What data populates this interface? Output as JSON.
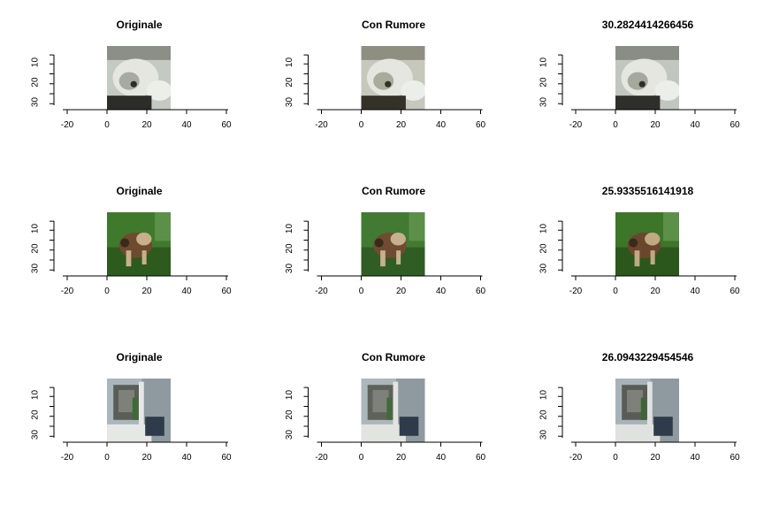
{
  "figure": {
    "type": "image-grid",
    "rows": 3,
    "columns": 3
  },
  "chart_data": [
    {
      "type": "image",
      "title": "Originale",
      "xlim": [
        -20,
        60
      ],
      "xticks": [
        -20,
        0,
        20,
        40,
        60
      ],
      "ylim": [
        32,
        0
      ],
      "yticks": [
        10,
        20,
        30
      ],
      "image_extent": {
        "x": [
          0,
          32
        ],
        "y": [
          0,
          32
        ]
      },
      "image_colors": [
        "#c4c9c2",
        "#a6ab9f",
        "#2c2c28",
        "#8b8f85"
      ],
      "subject": "dog"
    },
    {
      "type": "image",
      "title": "Con Rumore",
      "xlim": [
        -20,
        60
      ],
      "xticks": [
        -20,
        0,
        20,
        40,
        60
      ],
      "ylim": [
        32,
        0
      ],
      "yticks": [
        10,
        20,
        30
      ],
      "image_extent": {
        "x": [
          0,
          32
        ],
        "y": [
          0,
          32
        ]
      },
      "image_colors": [
        "#c6c8bd",
        "#a9ab9b",
        "#343129",
        "#8e8f80"
      ],
      "subject": "dog"
    },
    {
      "type": "image",
      "title": "30.2824414266456",
      "xlim": [
        -20,
        60
      ],
      "xticks": [
        -20,
        0,
        20,
        40,
        60
      ],
      "ylim": [
        32,
        0
      ],
      "yticks": [
        10,
        20,
        30
      ],
      "image_extent": {
        "x": [
          0,
          32
        ],
        "y": [
          0,
          32
        ]
      },
      "image_colors": [
        "#c3c6bf",
        "#a5a89d",
        "#2e2e2a",
        "#8a8d83"
      ],
      "subject": "dog"
    },
    {
      "type": "image",
      "title": "Originale",
      "xlim": [
        -20,
        60
      ],
      "xticks": [
        -20,
        0,
        20,
        40,
        60
      ],
      "ylim": [
        32,
        0
      ],
      "yticks": [
        10,
        20,
        30
      ],
      "image_colors": [
        "#3f7a2c",
        "#2d5a1d",
        "#6e4a2e",
        "#c9b08a"
      ],
      "image_extent": {
        "x": [
          0,
          32
        ],
        "y": [
          0,
          32
        ]
      },
      "subject": "animal-on-grass"
    },
    {
      "type": "image",
      "title": "Con Rumore",
      "xlim": [
        -20,
        60
      ],
      "xticks": [
        -20,
        0,
        20,
        40,
        60
      ],
      "ylim": [
        32,
        0
      ],
      "yticks": [
        10,
        20,
        30
      ],
      "image_extent": {
        "x": [
          0,
          32
        ],
        "y": [
          0,
          32
        ]
      },
      "image_colors": [
        "#437a33",
        "#305d24",
        "#6f4c31",
        "#c7b08d"
      ],
      "subject": "animal-on-grass"
    },
    {
      "type": "image",
      "title": "25.9335516141918",
      "xlim": [
        -20,
        60
      ],
      "xticks": [
        -20,
        0,
        20,
        40,
        60
      ],
      "ylim": [
        32,
        0
      ],
      "yticks": [
        10,
        20,
        30
      ],
      "image_extent": {
        "x": [
          0,
          32
        ],
        "y": [
          0,
          32
        ]
      },
      "image_colors": [
        "#3d7529",
        "#2b561c",
        "#6a472c",
        "#c2a983"
      ],
      "subject": "animal-on-grass"
    },
    {
      "type": "image",
      "title": "Originale",
      "xlim": [
        -20,
        60
      ],
      "xticks": [
        -20,
        0,
        20,
        40,
        60
      ],
      "ylim": [
        32,
        0
      ],
      "yticks": [
        10,
        20,
        30
      ],
      "image_extent": {
        "x": [
          0,
          32
        ],
        "y": [
          0,
          32
        ]
      },
      "image_colors": [
        "#a9b6bd",
        "#5a5e58",
        "#e6e8e6",
        "#3e6a35"
      ],
      "subject": "machine"
    },
    {
      "type": "image",
      "title": "Con Rumore",
      "xlim": [
        -20,
        60
      ],
      "xticks": [
        -20,
        0,
        20,
        40,
        60
      ],
      "ylim": [
        32,
        0
      ],
      "yticks": [
        10,
        20,
        30
      ],
      "image_extent": {
        "x": [
          0,
          32
        ],
        "y": [
          0,
          32
        ]
      },
      "image_colors": [
        "#abb7bb",
        "#5f625b",
        "#e2e4e0",
        "#43693a"
      ],
      "subject": "machine"
    },
    {
      "type": "image",
      "title": "26.0943229454546",
      "xlim": [
        -20,
        60
      ],
      "xticks": [
        -20,
        0,
        20,
        40,
        60
      ],
      "ylim": [
        32,
        0
      ],
      "yticks": [
        10,
        20,
        30
      ],
      "image_extent": {
        "x": [
          0,
          32
        ],
        "y": [
          0,
          32
        ]
      },
      "image_colors": [
        "#a7b3b9",
        "#595c56",
        "#e0e2df",
        "#3d6634"
      ],
      "subject": "machine"
    }
  ]
}
